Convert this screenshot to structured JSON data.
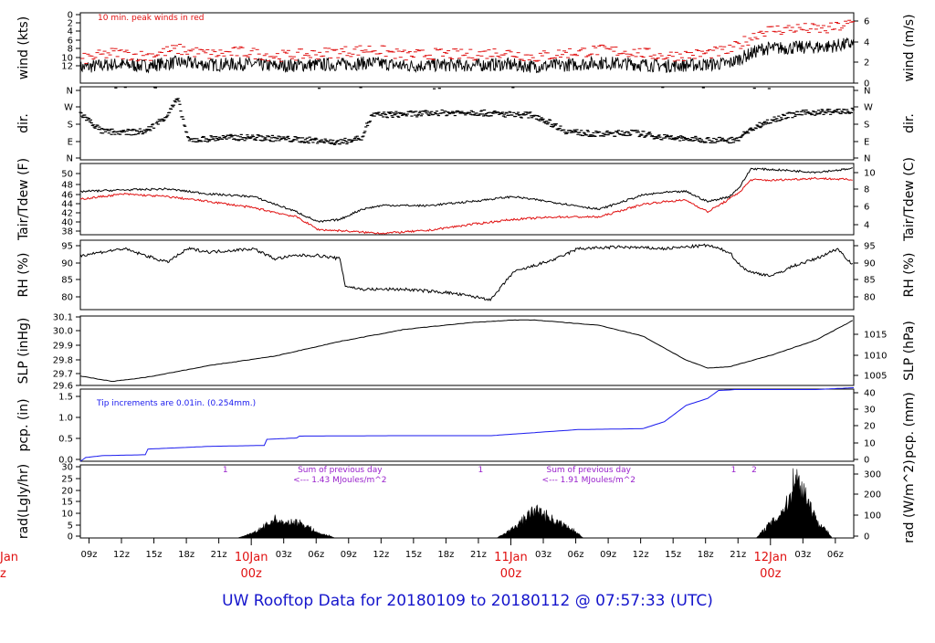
{
  "footer": {
    "title": "UW Rooftop Data for 20180109  to  20180112 @ 07:57:33  (UTC)"
  },
  "colors": {
    "axis": "#000000",
    "peak": "#e01010",
    "dew": "#e01010",
    "pcp": "#1a1aee",
    "annot": "#9922cc",
    "dayLabel": "#e01010",
    "footer": "#1515cc"
  },
  "x_axis": {
    "hour_ticks": [
      "09z",
      "12z",
      "15z",
      "18z",
      "21z",
      "03z",
      "06z",
      "09z",
      "12z",
      "15z",
      "18z",
      "21z",
      "03z",
      "06z",
      "09z",
      "12z",
      "15z",
      "18z",
      "21z",
      "03z",
      "06z"
    ],
    "day_labels": [
      {
        "day": "10Jan",
        "time": "00z"
      },
      {
        "day": "11Jan",
        "time": "00z"
      },
      {
        "day": "12Jan",
        "time": "00z"
      }
    ],
    "clipped_left": {
      "day": "Jan",
      "time": "z"
    }
  },
  "chart_data": [
    {
      "type": "line",
      "panel": "wind",
      "ylabel": "wind (kts)",
      "ylabel_right": "wind (m/s)",
      "ylim": [
        0,
        13.5
      ],
      "yticks": [
        "0",
        "2",
        "4",
        "6",
        "8",
        "10",
        "12"
      ],
      "yticks_right": [
        "0",
        "2",
        "4",
        "6"
      ],
      "annotation": "10 min. peak winds in red",
      "series": [
        {
          "name": "wind speed (kts)",
          "x": [
            0,
            3,
            6,
            9,
            12,
            15,
            18,
            21,
            24,
            27,
            30,
            33,
            36,
            39,
            42,
            45,
            48,
            51,
            54,
            57,
            60,
            63,
            66,
            69,
            71.5
          ],
          "values": [
            3.0,
            3.6,
            3.3,
            4.0,
            3.5,
            3.7,
            3.3,
            3.5,
            3.6,
            3.9,
            3.3,
            3.5,
            3.4,
            3.6,
            3.2,
            3.5,
            3.9,
            3.7,
            3.3,
            3.5,
            3.8,
            6.6,
            6.8,
            7.0,
            7.6
          ]
        },
        {
          "name": "10 min peak wind (kts)",
          "x": [
            0,
            3,
            6,
            9,
            12,
            15,
            18,
            21,
            24,
            27,
            30,
            33,
            36,
            39,
            42,
            45,
            48,
            51,
            54,
            57,
            60,
            63,
            66,
            69,
            71.5
          ],
          "values": [
            4.5,
            5.8,
            5.2,
            6.5,
            5.5,
            6.0,
            5.2,
            5.5,
            6.0,
            6.5,
            5.3,
            5.6,
            5.4,
            6.0,
            5.0,
            5.8,
            6.3,
            6.0,
            5.2,
            5.5,
            6.2,
            10.0,
            10.5,
            10.3,
            11.5
          ]
        }
      ]
    },
    {
      "type": "scatter",
      "panel": "dir",
      "ylabel": "dir.",
      "ylabel_right": "dir.",
      "ylim": [
        0,
        360
      ],
      "yticks": [
        "N",
        "E",
        "S",
        "W",
        "N"
      ],
      "yticks_right": [
        "N",
        "E",
        "S",
        "W",
        "N"
      ],
      "series": [
        {
          "name": "wind direction (deg)",
          "x": [
            0,
            2,
            4,
            6,
            7,
            8,
            8.5,
            9,
            10,
            12,
            14,
            16,
            18,
            20,
            22,
            24,
            26,
            26.5,
            27,
            30,
            33,
            36,
            39,
            42,
            45,
            48,
            51,
            54,
            57,
            60,
            61,
            62,
            64,
            66,
            68,
            71.5
          ],
          "values": [
            230,
            140,
            135,
            140,
            175,
            220,
            260,
            300,
            95,
            105,
            110,
            110,
            105,
            100,
            95,
            85,
            110,
            170,
            220,
            225,
            230,
            235,
            225,
            220,
            140,
            125,
            135,
            110,
            100,
            95,
            110,
            150,
            200,
            225,
            235,
            240
          ]
        }
      ]
    },
    {
      "type": "line",
      "panel": "temp",
      "ylabel": "Tair/Tdew (F)",
      "ylabel_right": "Tair/Tdew (C)",
      "ylim": [
        37.5,
        51.5
      ],
      "yticks": [
        "38",
        "40",
        "42",
        "44",
        "46",
        "48",
        "50"
      ],
      "yticks_right": [
        "4",
        "6",
        "8",
        "10"
      ],
      "series": [
        {
          "name": "Tair (F)",
          "x": [
            0,
            4,
            8,
            12,
            16,
            20,
            22,
            24,
            26,
            28,
            32,
            36,
            40,
            44,
            48,
            52,
            54,
            56,
            58,
            60,
            61,
            62,
            64,
            68,
            71.5
          ],
          "values": [
            46,
            46.3,
            46.5,
            45.5,
            45,
            42,
            40,
            40.5,
            42.5,
            43.3,
            43.2,
            44,
            45,
            43.8,
            42.5,
            45.3,
            45.8,
            46,
            44,
            45,
            47,
            50.5,
            50.3,
            49.8,
            50.5
          ]
        },
        {
          "name": "Tdew (F)",
          "x": [
            0,
            4,
            8,
            12,
            16,
            20,
            22,
            24,
            26,
            28,
            32,
            36,
            40,
            44,
            48,
            52,
            54,
            56,
            58,
            60,
            61,
            62,
            64,
            68,
            71.5
          ],
          "values": [
            44.5,
            45.5,
            45,
            44,
            42.8,
            41,
            38.5,
            38.3,
            38,
            37.8,
            38.3,
            39.5,
            40.5,
            41,
            41,
            43.5,
            44,
            44.3,
            42,
            44.5,
            46,
            48.3,
            48.2,
            48.6,
            48.3
          ]
        }
      ]
    },
    {
      "type": "line",
      "panel": "rh",
      "ylabel": "RH (%)",
      "ylabel_right": "RH (%)",
      "ylim": [
        77,
        97.5
      ],
      "yticks": [
        "80",
        "85",
        "90",
        "95"
      ],
      "yticks_right": [
        "80",
        "85",
        "90",
        "95"
      ],
      "series": [
        {
          "name": "RH (%)",
          "x": [
            0,
            4,
            8,
            10,
            12,
            16,
            18,
            20,
            22,
            24,
            24.5,
            26,
            30,
            34,
            36,
            38,
            38.5,
            40,
            44,
            46,
            50,
            54,
            58,
            60,
            61,
            62,
            64,
            66,
            68,
            70,
            71.5
          ],
          "values": [
            93,
            95,
            91,
            95,
            94,
            95,
            92,
            93,
            93,
            92,
            84,
            83,
            83,
            82,
            81,
            80,
            82,
            88,
            92,
            95,
            95.5,
            95,
            96,
            94,
            90,
            88,
            87,
            90,
            92,
            95,
            90
          ]
        }
      ]
    },
    {
      "type": "line",
      "panel": "slp",
      "ylabel": "SLP (inHg)",
      "ylabel_right": "SLP (hPa)",
      "ylim": [
        29.6,
        30.12
      ],
      "yticks": [
        "29.6",
        "29.7",
        "29.8",
        "29.9",
        "30.0",
        "30.1"
      ],
      "yticks_right": [
        "1005",
        "1010",
        "1015"
      ],
      "series": [
        {
          "name": "SLP (inHg)",
          "x": [
            0,
            3,
            6,
            12,
            18,
            24,
            30,
            36,
            40,
            42,
            48,
            52,
            56,
            58,
            60,
            64,
            68,
            71.5
          ],
          "values": [
            29.67,
            29.63,
            29.66,
            29.75,
            29.82,
            29.93,
            30.02,
            30.07,
            30.09,
            30.09,
            30.05,
            29.97,
            29.79,
            29.73,
            29.74,
            29.83,
            29.94,
            30.09
          ]
        }
      ]
    },
    {
      "type": "area",
      "panel": "pcp",
      "ylabel": "pcp. (in)",
      "ylabel_right": "pcp. (mm)",
      "ylim": [
        0,
        1.55
      ],
      "yticks": [
        "0.0",
        "0.5",
        "1.0",
        "1.5"
      ],
      "yticks_right": [
        "0",
        "10",
        "20",
        "30",
        "40"
      ],
      "annotation": "Tip increments are 0.01in. (0.254mm.)",
      "series": [
        {
          "name": "accumulated precip (in)",
          "x": [
            0,
            0.5,
            2,
            6,
            6.1,
            12,
            17,
            17.2,
            20,
            20.1,
            30,
            38,
            46,
            52,
            54,
            56,
            58,
            59,
            60,
            60.5,
            68,
            71.5
          ],
          "values": [
            0,
            0.08,
            0.12,
            0.14,
            0.26,
            0.32,
            0.34,
            0.47,
            0.5,
            0.54,
            0.55,
            0.55,
            0.68,
            0.7,
            0.85,
            1.2,
            1.35,
            1.52,
            1.53,
            1.54,
            1.54,
            1.58
          ]
        }
      ]
    },
    {
      "type": "area",
      "panel": "rad",
      "ylabel": "rad(Lgly/hr)",
      "ylabel_right": "rad (W/m^2)",
      "ylim": [
        0,
        30
      ],
      "yticks": [
        "0",
        "5",
        "10",
        "15",
        "20",
        "25",
        "30"
      ],
      "yticks_right": [
        "0",
        "100",
        "200",
        "300"
      ],
      "annotations": [
        {
          "text": "1",
          "x": 13.4
        },
        {
          "text": "1",
          "x": 37
        },
        {
          "text": "1",
          "x": 60.4
        },
        {
          "text": "2",
          "x": 62.3
        },
        {
          "text": "Sum of previous day",
          "x": 24
        },
        {
          "text": "<--- 1.43 MJoules/m^2",
          "x": 24
        },
        {
          "text": "Sum of previous day",
          "x": 47
        },
        {
          "text": "<--- 1.91 MJoules/m^2",
          "x": 47
        }
      ],
      "series": [
        {
          "name": "solar radiation (Lgly/hr)",
          "x": [
            14.5,
            16,
            17,
            18,
            19,
            20,
            21,
            22,
            23,
            23.5,
            38.5,
            40,
            41,
            42,
            43,
            44,
            45,
            46,
            46.5,
            62.5,
            63.5,
            64.5,
            65.5,
            66,
            67,
            68,
            69,
            69.5
          ],
          "values": [
            0,
            2,
            5,
            8,
            6,
            7,
            5,
            2,
            1,
            0,
            0,
            4,
            8,
            12,
            10,
            7,
            5,
            2,
            0,
            0,
            5,
            9,
            16,
            27,
            20,
            8,
            3,
            0
          ]
        }
      ]
    }
  ]
}
